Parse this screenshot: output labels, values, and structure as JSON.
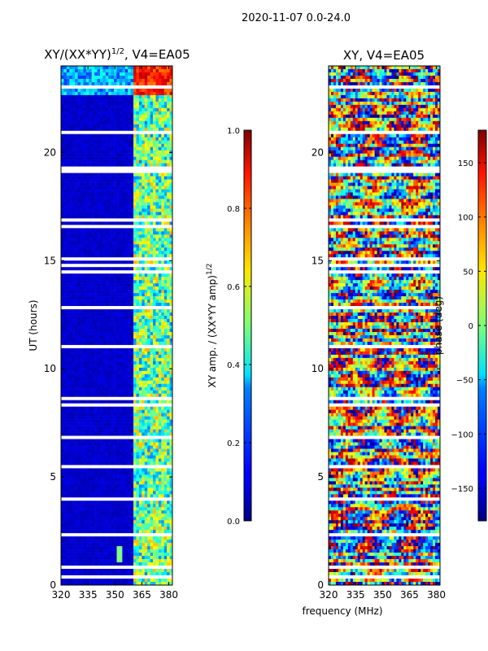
{
  "figure": {
    "suptitle": "2020-11-07 0.0-24.0",
    "xlabel_shared": "frequency (MHz)"
  },
  "chart_data": [
    {
      "type": "heatmap",
      "title_main": "XY/(XX*YY)",
      "title_sup": "1/2",
      "title_tail": ", V4=EA05",
      "ylabel": "UT (hours)",
      "xlim": [
        320,
        382
      ],
      "ylim": [
        0,
        24
      ],
      "xticks": [
        320,
        335,
        350,
        365,
        380
      ],
      "yticks": [
        0,
        5,
        10,
        15,
        20
      ],
      "colorbar": {
        "label_main": "XY amp. / (XX*YY amp)",
        "label_sup": "1/2",
        "range": [
          0.0,
          1.0
        ],
        "ticks": [
          0.0,
          0.2,
          0.4,
          0.6,
          0.8,
          1.0
        ],
        "tick_labels": [
          "0.0",
          "0.2",
          "0.4",
          "0.6",
          "0.8",
          "1.0"
        ],
        "colormap": "jet"
      },
      "description_values": {
        "background_level": 0.05,
        "bright_band_freq_range_MHz": [
          360,
          382
        ],
        "bright_band_level": 0.45,
        "top_band_ut_range": [
          22.6,
          24.0
        ],
        "top_band_level": 0.3,
        "rfi_spike": {
          "freq_MHz": 352,
          "ut_range": [
            1.0,
            1.8
          ],
          "level": 0.5
        }
      }
    },
    {
      "type": "heatmap",
      "title": "XY, V4=EA05",
      "xlim": [
        320,
        382
      ],
      "ylim": [
        0,
        24
      ],
      "xticks": [
        320,
        335,
        350,
        365,
        380
      ],
      "yticks": [
        0,
        5,
        10,
        15,
        20
      ],
      "colorbar": {
        "label": "phase (deg)",
        "range": [
          -180,
          180
        ],
        "ticks": [
          150,
          100,
          50,
          0,
          -50,
          -100,
          -150
        ],
        "tick_labels": [
          "150",
          "100",
          "50",
          "0",
          "−50",
          "−100",
          "−150"
        ],
        "colormap": "jet"
      }
    }
  ],
  "colors": {
    "jet_low": "#00007f",
    "jet_high": "#7f0000",
    "axis": "#000000",
    "gap": "#ffffff"
  }
}
